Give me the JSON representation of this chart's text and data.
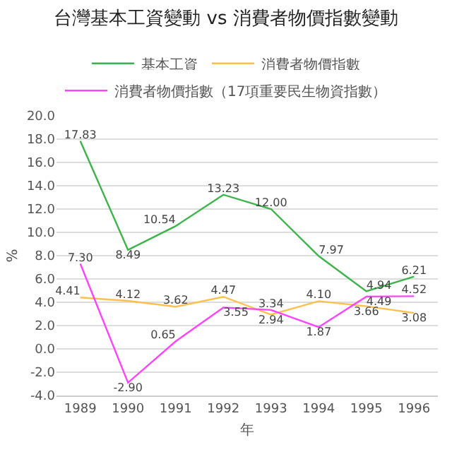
{
  "chart_data": {
    "type": "line",
    "title": "台灣基本工資變動 vs 消費者物價指數變動",
    "xlabel": "年",
    "ylabel": "%",
    "categories": [
      "1989",
      "1990",
      "1991",
      "1992",
      "1993",
      "1994",
      "1995",
      "1996"
    ],
    "series": [
      {
        "name": "基本工資",
        "color": "#3cb44b",
        "values": [
          17.83,
          8.49,
          10.54,
          13.23,
          12.0,
          7.97,
          4.94,
          6.21
        ],
        "value_labels": [
          "17.83",
          "8.49",
          "10.54",
          "13.23",
          "12.00",
          "7.97",
          "4.94",
          "6.21"
        ]
      },
      {
        "name": "消費者物價指數",
        "color": "#ffc04d",
        "values": [
          4.41,
          4.12,
          3.62,
          4.47,
          2.94,
          4.1,
          3.66,
          3.08
        ],
        "value_labels": [
          "4.41",
          "4.12",
          "3.62",
          "4.47",
          "2.94",
          "4.10",
          "3.66",
          "3.08"
        ]
      },
      {
        "name": "消費者物價指數（17項重要民生物資指數）",
        "color": "#ff44ff",
        "values": [
          7.3,
          -2.9,
          0.65,
          3.55,
          3.34,
          1.87,
          4.49,
          4.52
        ],
        "value_labels": [
          "7.30",
          "-2.90",
          "0.65",
          "3.55",
          "3.34",
          "1.87",
          "4.49",
          "4.52"
        ]
      }
    ],
    "ylim": [
      -4,
      20
    ],
    "yticks": [
      {
        "value": -4,
        "label": "-4.0"
      },
      {
        "value": -2,
        "label": "-2.0"
      },
      {
        "value": 0,
        "label": "0.0"
      },
      {
        "value": 2,
        "label": "2.0"
      },
      {
        "value": 4,
        "label": "4.0"
      },
      {
        "value": 6,
        "label": "6.0"
      },
      {
        "value": 8,
        "label": "8.0"
      },
      {
        "value": 10,
        "label": "10.0"
      },
      {
        "value": 12,
        "label": "12.0"
      },
      {
        "value": 14,
        "label": "14.0"
      },
      {
        "value": 16,
        "label": "16.0"
      },
      {
        "value": 18,
        "label": "18.0"
      },
      {
        "value": 20,
        "label": "20.0"
      }
    ],
    "grid": "y",
    "legend": "top",
    "marker": "none",
    "line_style": "solid"
  }
}
